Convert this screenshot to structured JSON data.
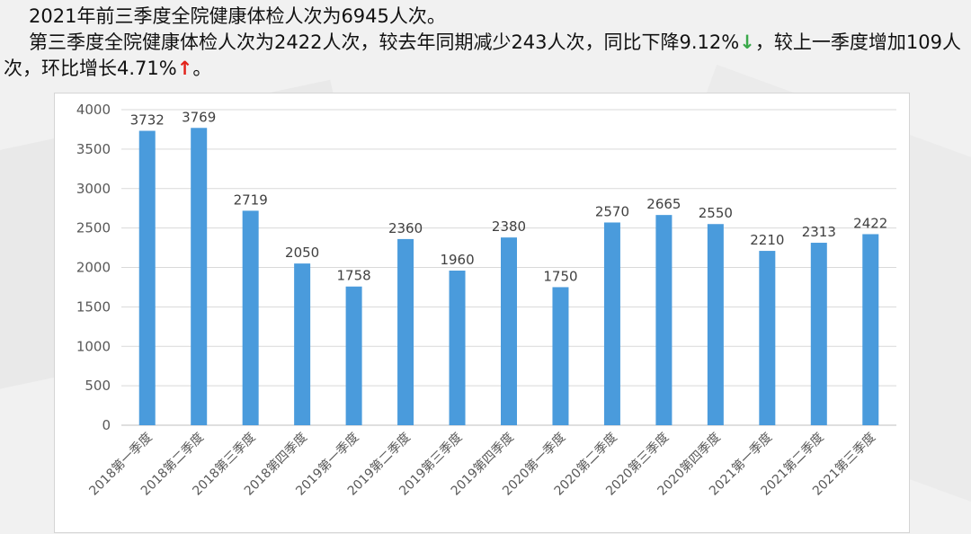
{
  "summary": {
    "line1": "2021年前三季度全院健康体检人次为6945人次。",
    "line2_part1": "第三季度全院健康体检人次为2422人次，较去年同期减少243人次，同比下降9.12%",
    "arrow_down": "↓",
    "line2_part2": "，较上一季度增加109人次，环比增长4.71%",
    "arrow_up": "↑",
    "line2_part3": "。"
  },
  "colors": {
    "bar": "#4a9bdc",
    "grid": "#d9d9d9",
    "axis": "#bfbfbf",
    "arrow_down": "#3aa84a",
    "arrow_up": "#e2231a"
  },
  "chart_data": {
    "type": "bar",
    "categories": [
      "2018第一季度",
      "2018第二季度",
      "2018第三季度",
      "2018第四季度",
      "2019第一季度",
      "2019第二季度",
      "2019第三季度",
      "2019第四季度",
      "2020第一季度",
      "2020第二季度",
      "2020第三季度",
      "2020第四季度",
      "2021第一季度",
      "2021第二季度",
      "2021第三季度"
    ],
    "values": [
      3732,
      3769,
      2719,
      2050,
      1758,
      2360,
      1960,
      2380,
      1750,
      2570,
      2665,
      2550,
      2210,
      2313,
      2422
    ],
    "title": "",
    "xlabel": "",
    "ylabel": "",
    "ylim": [
      0,
      4000
    ],
    "yticks": [
      0,
      500,
      1000,
      1500,
      2000,
      2500,
      3000,
      3500,
      4000
    ],
    "grid": true,
    "legend": "none",
    "data_labels": true
  }
}
